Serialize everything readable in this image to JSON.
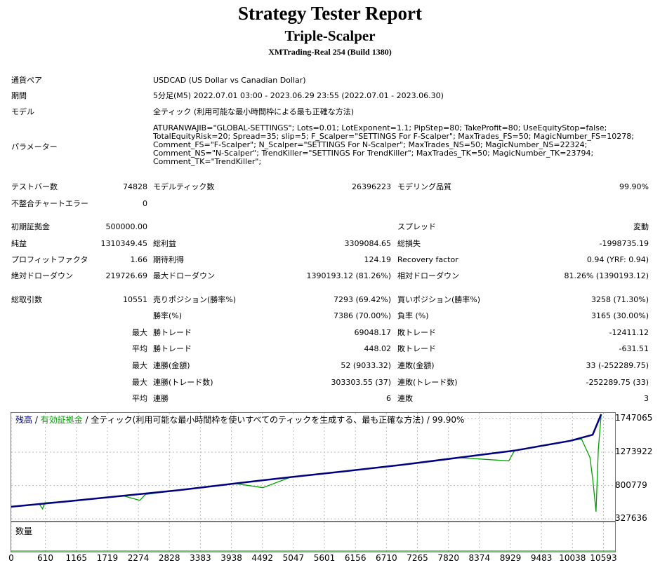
{
  "header": {
    "title": "Strategy Tester Report",
    "subtitle": "Triple-Scalper",
    "server": "XMTrading-Real 254 (Build 1380)"
  },
  "info": {
    "symbol_label": "通貨ペア",
    "symbol_value": "USDCAD (US Dollar vs Canadian Dollar)",
    "period_label": "期間",
    "period_value": "5分足(M5) 2022.07.01 03:00 - 2023.06.29 23:55 (2022.07.01 - 2023.06.30)",
    "model_label": "モデル",
    "model_value": "全ティック (利用可能な最小時間枠による最も正確な方法)",
    "params_label": "パラメーター",
    "params_value": "ATURANWAJIB=\"GLOBAL-SETTINGS\"; Lots=0.01; LotExponent=1.1; PipStep=80; TakeProfit=80; UseEquityStop=false; TotalEquityRisk=20; Spread=35; slip=5; F_Scalper=\"SETTINGS For F-Scalper\"; MaxTrades_FS=50; MagicNumber_FS=10278; Comment_FS=\"F-Scalper\"; N_Scalper=\"SETTINGS For N-Scalper\"; MaxTrades_NS=50; MagicNumber_NS=22324; Comment_NS=\"N-Scalper\"; TrendKiller=\"SETTINGS For TrendKiller\"; MaxTrades_TK=50; MagicNumber_TK=23794; Comment_TK=\"TrendKiller\";"
  },
  "stats": {
    "bars_label": "テストバー数",
    "bars_value": "74828",
    "ticks_label": "モデルティック数",
    "ticks_value": "26396223",
    "quality_label": "モデリング品質",
    "quality_value": "99.90%",
    "mismatch_label": "不整合チャートエラー",
    "mismatch_value": "0",
    "deposit_label": "初期証拠金",
    "deposit_value": "500000.00",
    "spread_label": "スプレッド",
    "spread_value": "変動",
    "net_label": "純益",
    "net_value": "1310349.45",
    "gross_profit_label": "総利益",
    "gross_profit_value": "3309084.65",
    "gross_loss_label": "総損失",
    "gross_loss_value": "-1998735.19",
    "pf_label": "プロフィットファクタ",
    "pf_value": "1.66",
    "expected_label": "期待利得",
    "expected_value": "124.19",
    "recovery_label": "Recovery factor",
    "recovery_value": "0.94 (YRF: 0.94)",
    "abs_dd_label": "絶対ドローダウン",
    "abs_dd_value": "219726.69",
    "max_dd_label": "最大ドローダウン",
    "max_dd_value": "1390193.12 (81.26%)",
    "rel_dd_label": "相対ドローダウン",
    "rel_dd_value": "81.26% (1390193.12)",
    "trades_label": "総取引数",
    "trades_value": "10551",
    "short_label": "売りポジション(勝率%)",
    "short_value": "7293 (69.42%)",
    "long_label": "買いポジション(勝率%)",
    "long_value": "3258 (71.30%)",
    "win_rate_label": "勝率(%)",
    "win_rate_value": "7386 (70.00%)",
    "loss_rate_label": "負率 (%)",
    "loss_rate_value": "3165 (30.00%)",
    "max_label": "最大",
    "avg_label": "平均",
    "max_win_label": "勝トレード",
    "max_win_value": "69048.17",
    "max_loss_label": "敗トレード",
    "max_loss_value": "-12411.12",
    "avg_win_label": "勝トレード",
    "avg_win_value": "448.02",
    "avg_loss_label": "敗トレード",
    "avg_loss_value": "-631.51",
    "cons_wins_amt_label": "連勝(金額)",
    "cons_wins_amt_value": "52 (9033.32)",
    "cons_losses_amt_label": "連敗(金額)",
    "cons_losses_amt_value": "33 (-252289.75)",
    "cons_wins_cnt_label": "連勝(トレード数)",
    "cons_wins_cnt_value": "303303.55 (37)",
    "cons_losses_cnt_label": "連敗(トレード数)",
    "cons_losses_cnt_value": "-252289.75 (33)",
    "avg_cons_wins_label": "連勝",
    "avg_cons_wins_value": "6",
    "avg_cons_losses_label": "連敗",
    "avg_cons_losses_value": "3"
  },
  "chart_data": {
    "type": "line",
    "legend_balance": "残高",
    "legend_sep1": " / ",
    "legend_equity": "有効証拠金",
    "legend_sep2": " / ",
    "legend_rest": "全ティック(利用可能な最小時間枠を使いすべてのティックを生成する、最も正確な方法) / 99.90%",
    "volume_label": "数量",
    "y_ticks": [
      "1747065",
      "1273922",
      "800779",
      "327636"
    ],
    "y_tick_values": [
      1747065,
      1273922,
      800779,
      327636
    ],
    "x_ticks": [
      "0",
      "610",
      "1165",
      "1719",
      "2274",
      "2828",
      "3383",
      "3938",
      "4492",
      "5047",
      "5601",
      "6156",
      "6710",
      "7265",
      "7820",
      "8374",
      "8929",
      "9483",
      "10038",
      "10593"
    ],
    "x_tick_values": [
      0,
      610,
      1165,
      1719,
      2274,
      2828,
      3383,
      3938,
      4492,
      5047,
      5601,
      6156,
      6710,
      7265,
      7820,
      8374,
      8929,
      9483,
      10038,
      10593
    ],
    "xlim": [
      0,
      10800
    ],
    "ylim": [
      300000,
      1830000
    ],
    "series": [
      {
        "color": "#000080",
        "x": [
          0,
          1000,
          2000,
          3000,
          4000,
          5000,
          6000,
          7000,
          8000,
          9000,
          10000,
          10400,
          10551
        ],
        "y": [
          500000,
          575000,
          655000,
          735000,
          830000,
          920000,
          1005000,
          1095000,
          1195000,
          1295000,
          1435000,
          1520000,
          1810000
        ]
      },
      {
        "color": "#00a000",
        "x": [
          0,
          500,
          560,
          600,
          1000,
          2000,
          2300,
          2400,
          3000,
          4000,
          4500,
          5000,
          6000,
          7000,
          7800,
          8000,
          8900,
          9000,
          10000,
          10200,
          10350,
          10400,
          10460,
          10500,
          10551
        ],
        "y": [
          500000,
          540000,
          470000,
          555000,
          575000,
          655000,
          590000,
          675000,
          735000,
          830000,
          770000,
          920000,
          1005000,
          1095000,
          1180000,
          1195000,
          1150000,
          1295000,
          1435000,
          1460000,
          1200000,
          900000,
          430000,
          1300000,
          1810000
        ]
      }
    ],
    "balance_color": "#000080",
    "equity_color": "#00a000"
  }
}
